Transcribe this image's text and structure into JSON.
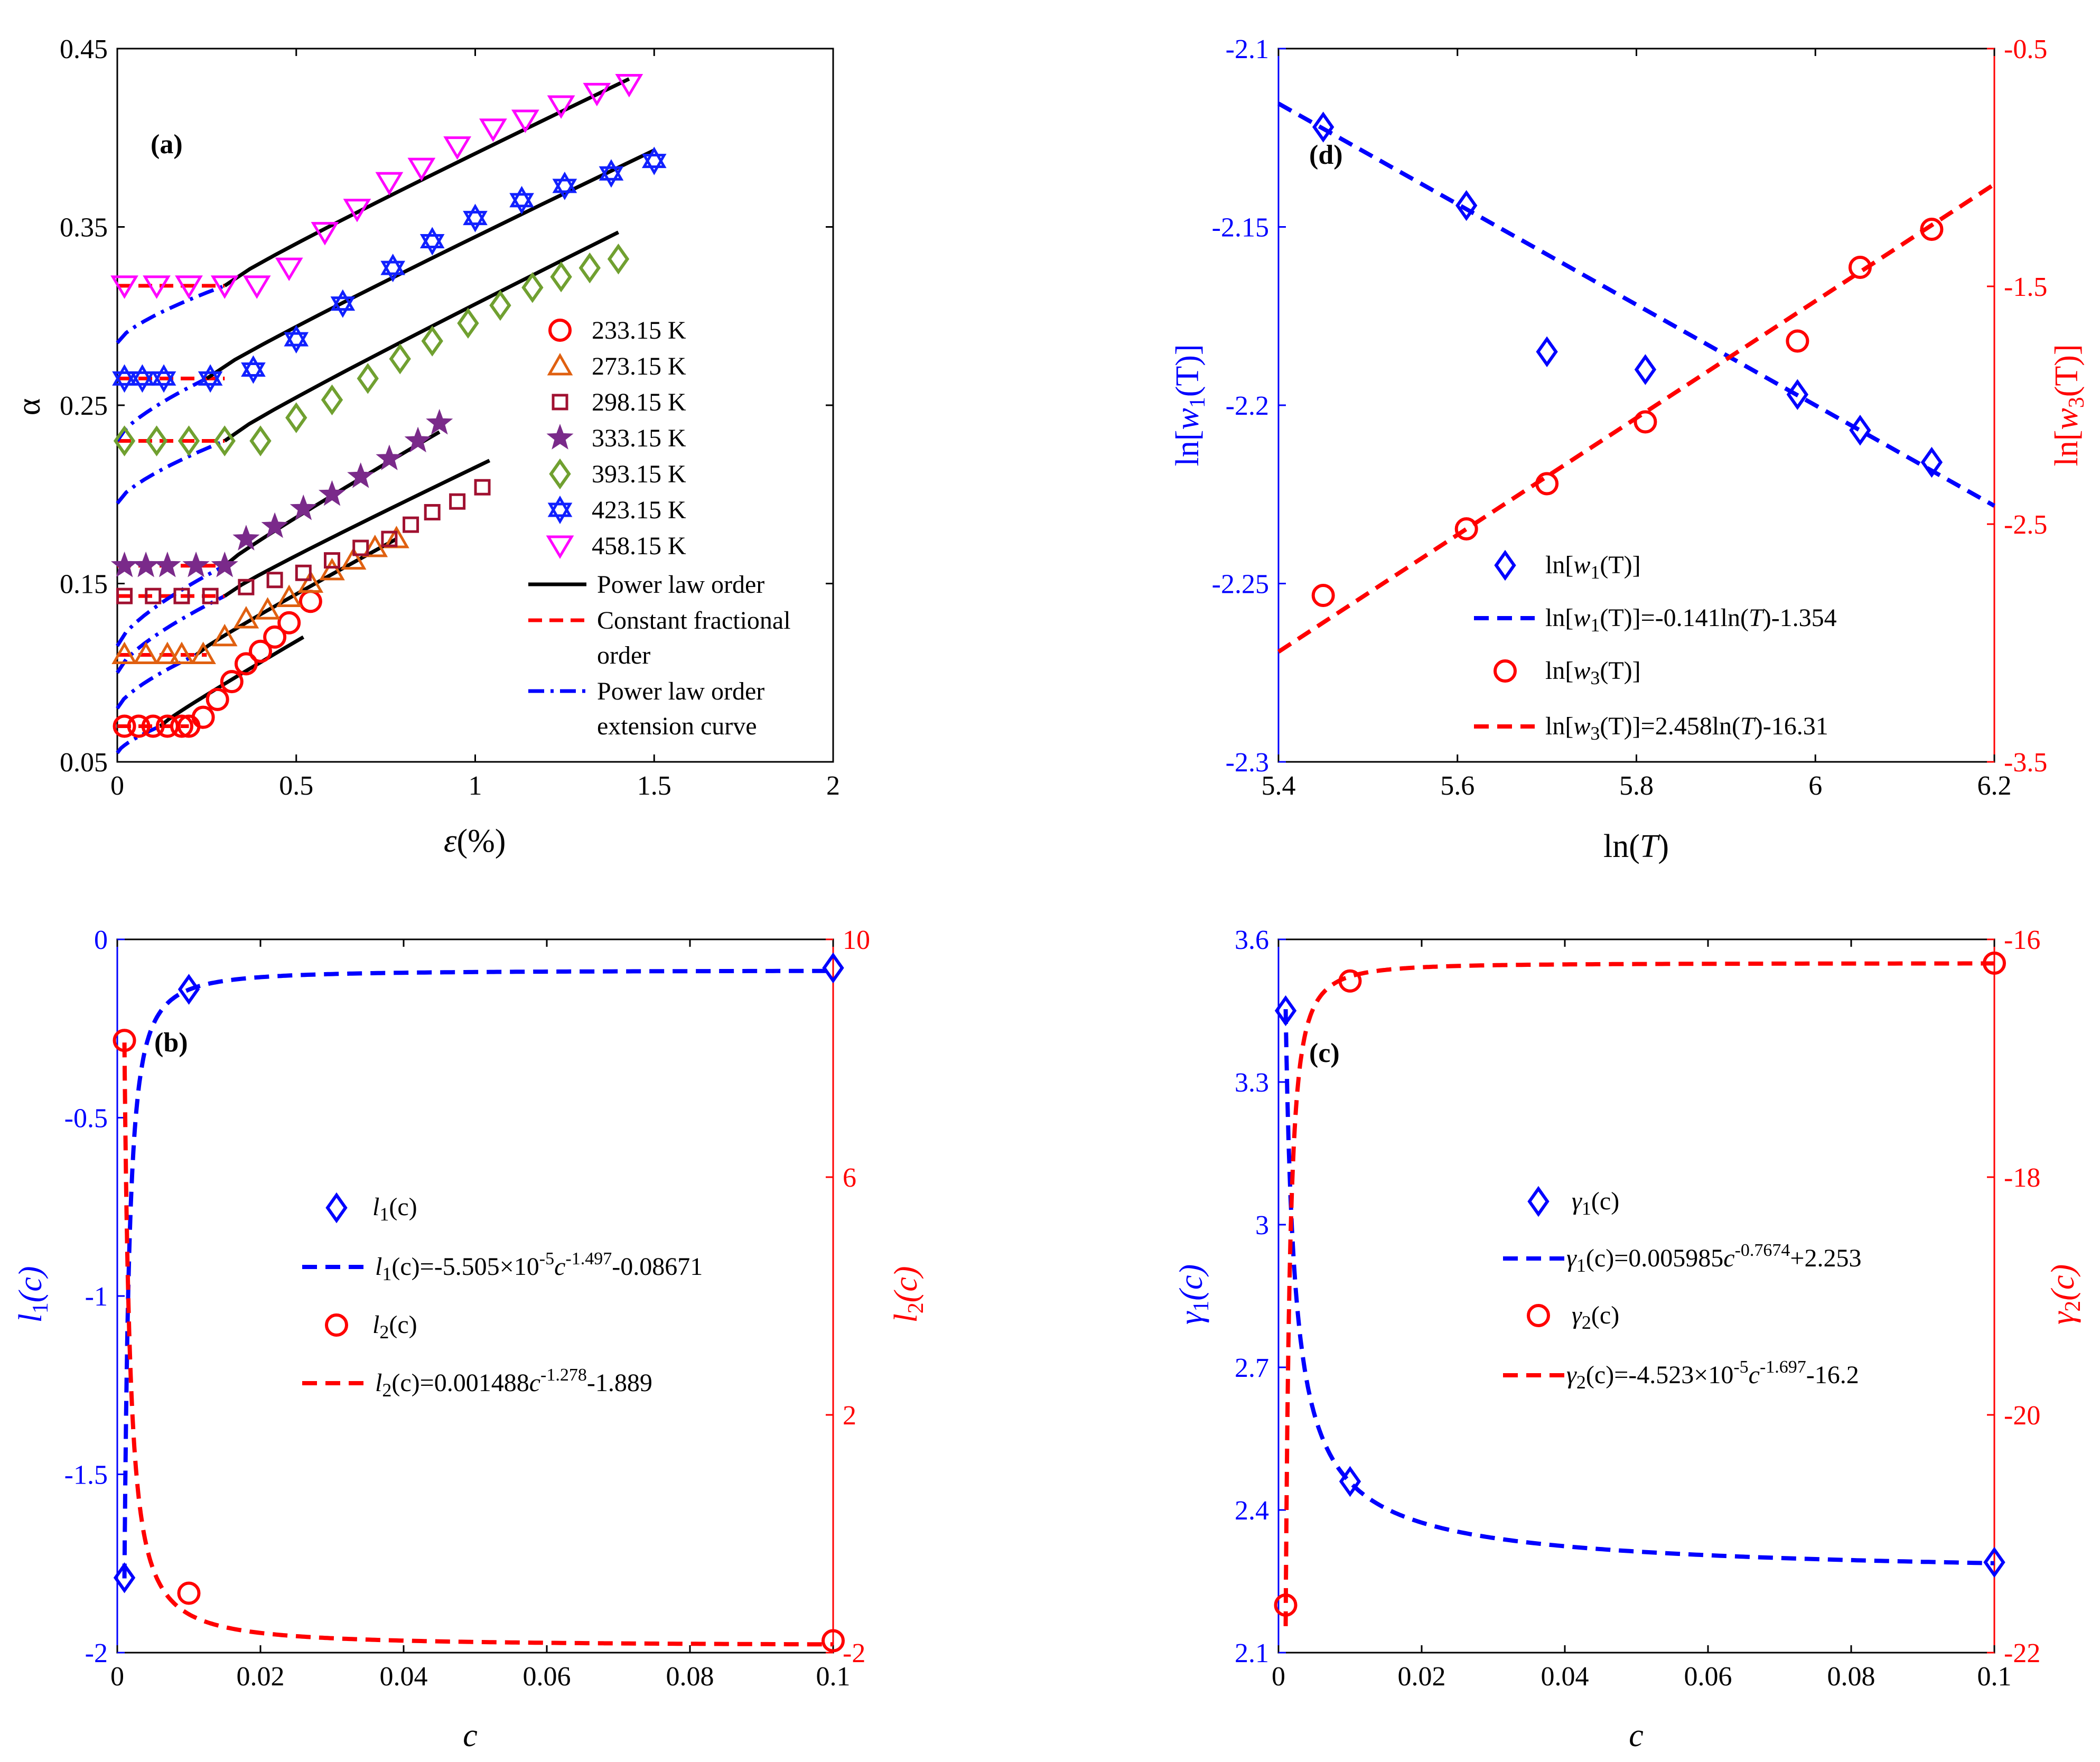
{
  "colors": {
    "blue": "#0000ff",
    "red": "#ff0000",
    "black": "#000000",
    "orange": "#e06010",
    "maroon": "#a01030",
    "purple": "#7a2a8a",
    "green": "#70a030",
    "magenta": "#ff00ff",
    "blueMarker": "#1020ff"
  },
  "chart_data": [
    {
      "id": "a",
      "type": "scatter",
      "panel_label": "(a)",
      "xlabel_sym": "ε",
      "xlabel_unit": "(%)",
      "ylabel": "α",
      "xlim": [
        0,
        2
      ],
      "ylim": [
        0.05,
        0.45
      ],
      "xticks": [
        {
          "v": 0,
          "t": "0"
        },
        {
          "v": 0.5,
          "t": "0.5"
        },
        {
          "v": 1,
          "t": "1"
        },
        {
          "v": 1.5,
          "t": "1.5"
        },
        {
          "v": 2,
          "t": "2"
        }
      ],
      "yticks": [
        {
          "v": 0.05,
          "t": "0.05"
        },
        {
          "v": 0.15,
          "t": "0.15"
        },
        {
          "v": 0.25,
          "t": "0.25"
        },
        {
          "v": 0.35,
          "t": "0.35"
        },
        {
          "v": 0.45,
          "t": "0.45"
        }
      ],
      "series": [
        {
          "name": "233.15 K",
          "marker": "circle",
          "color": "#ff0000",
          "x": [
            0.02,
            0.06,
            0.1,
            0.14,
            0.18,
            0.2,
            0.24,
            0.28,
            0.32,
            0.36,
            0.4,
            0.44,
            0.48,
            0.54
          ],
          "y": [
            0.07,
            0.07,
            0.07,
            0.07,
            0.07,
            0.07,
            0.075,
            0.085,
            0.095,
            0.105,
            0.112,
            0.12,
            0.128,
            0.14
          ],
          "const_y": 0.07,
          "const_x": [
            0,
            0.2
          ],
          "power": [
            [
              0.12,
              0.07
            ],
            [
              0.52,
              0.12
            ]
          ],
          "ext": [
            [
              0,
              0.055
            ],
            [
              0.12,
              0.07
            ]
          ]
        },
        {
          "name": "273.15 K",
          "marker": "triangle-up",
          "color": "#e06010",
          "x": [
            0.02,
            0.08,
            0.14,
            0.18,
            0.24,
            0.3,
            0.36,
            0.42,
            0.48,
            0.54,
            0.6,
            0.66,
            0.72,
            0.78
          ],
          "y": [
            0.11,
            0.11,
            0.11,
            0.11,
            0.11,
            0.12,
            0.13,
            0.135,
            0.142,
            0.15,
            0.157,
            0.163,
            0.17,
            0.175
          ],
          "const_y": 0.11,
          "const_x": [
            0,
            0.25
          ],
          "power": [
            [
              0.22,
              0.11
            ],
            [
              0.78,
              0.175
            ]
          ],
          "ext": [
            [
              0,
              0.08
            ],
            [
              0.22,
              0.11
            ]
          ]
        },
        {
          "name": "298.15 K",
          "marker": "square",
          "color": "#a01030",
          "x": [
            0.02,
            0.1,
            0.18,
            0.26,
            0.36,
            0.44,
            0.52,
            0.6,
            0.68,
            0.76,
            0.82,
            0.88,
            0.95,
            1.02
          ],
          "y": [
            0.143,
            0.143,
            0.143,
            0.143,
            0.148,
            0.152,
            0.156,
            0.163,
            0.17,
            0.175,
            0.183,
            0.19,
            0.196,
            0.204
          ],
          "const_y": 0.143,
          "const_x": [
            0,
            0.3
          ],
          "power": [
            [
              0.3,
              0.143
            ],
            [
              1.04,
              0.219
            ]
          ],
          "ext": [
            [
              0,
              0.1
            ],
            [
              0.3,
              0.143
            ]
          ]
        },
        {
          "name": "333.15 K",
          "marker": "star5",
          "color": "#7a2a8a",
          "x": [
            0.02,
            0.08,
            0.14,
            0.22,
            0.3,
            0.36,
            0.44,
            0.52,
            0.6,
            0.68,
            0.76,
            0.84,
            0.9
          ],
          "y": [
            0.16,
            0.16,
            0.16,
            0.16,
            0.16,
            0.175,
            0.182,
            0.192,
            0.2,
            0.21,
            0.22,
            0.23,
            0.24
          ],
          "const_y": 0.16,
          "const_x": [
            0,
            0.3
          ],
          "power": [
            [
              0.3,
              0.16
            ],
            [
              0.9,
              0.235
            ]
          ],
          "ext": [
            [
              0,
              0.115
            ],
            [
              0.3,
              0.16
            ]
          ]
        },
        {
          "name": "393.15 K",
          "marker": "diamond",
          "color": "#70a030",
          "x": [
            0.02,
            0.11,
            0.2,
            0.3,
            0.4,
            0.5,
            0.6,
            0.7,
            0.79,
            0.88,
            0.98,
            1.07,
            1.16,
            1.24,
            1.32,
            1.4
          ],
          "y": [
            0.23,
            0.23,
            0.23,
            0.23,
            0.23,
            0.243,
            0.253,
            0.265,
            0.276,
            0.286,
            0.296,
            0.306,
            0.316,
            0.322,
            0.327,
            0.332
          ],
          "const_y": 0.23,
          "const_x": [
            0,
            0.3
          ],
          "power": [
            [
              0.3,
              0.23
            ],
            [
              1.4,
              0.347
            ]
          ],
          "ext": [
            [
              0,
              0.195
            ],
            [
              0.3,
              0.23
            ]
          ]
        },
        {
          "name": "423.15 K",
          "marker": "hexagram",
          "color": "#1020ff",
          "x": [
            0.02,
            0.07,
            0.13,
            0.26,
            0.38,
            0.5,
            0.63,
            0.77,
            0.88,
            1.0,
            1.13,
            1.25,
            1.38,
            1.5
          ],
          "y": [
            0.265,
            0.265,
            0.265,
            0.265,
            0.27,
            0.287,
            0.307,
            0.327,
            0.342,
            0.355,
            0.365,
            0.373,
            0.38,
            0.387
          ],
          "const_y": 0.265,
          "const_x": [
            0,
            0.3
          ],
          "power": [
            [
              0.25,
              0.265
            ],
            [
              1.5,
              0.393
            ]
          ],
          "ext": [
            [
              0,
              0.23
            ],
            [
              0.25,
              0.265
            ]
          ]
        },
        {
          "name": "458.15 K",
          "marker": "triangle-down",
          "color": "#ff00ff",
          "x": [
            0.02,
            0.11,
            0.2,
            0.3,
            0.39,
            0.48,
            0.58,
            0.67,
            0.76,
            0.85,
            0.95,
            1.05,
            1.14,
            1.24,
            1.34,
            1.43
          ],
          "y": [
            0.317,
            0.317,
            0.317,
            0.317,
            0.317,
            0.327,
            0.347,
            0.36,
            0.375,
            0.383,
            0.395,
            0.405,
            0.41,
            0.418,
            0.425,
            0.43
          ],
          "const_y": 0.317,
          "const_x": [
            0,
            0.3
          ],
          "power": [
            [
              0.3,
              0.317
            ],
            [
              1.43,
              0.433
            ]
          ],
          "ext": [
            [
              0,
              0.285
            ],
            [
              0.3,
              0.317
            ]
          ]
        }
      ],
      "legend_lines": [
        {
          "name": "Power law order",
          "style": "solid",
          "color": "#000000"
        },
        {
          "name": "Constant fractional",
          "name2": "order",
          "style": "dash",
          "color": "#ff0000"
        },
        {
          "name": "Power law order",
          "name2": "extension curve",
          "style": "dashdot",
          "color": "#0000ff"
        }
      ]
    },
    {
      "id": "b",
      "type": "scatter+line",
      "panel_label": "(b)",
      "xlabel": "c",
      "ylabel_left_sym": "l",
      "ylabel_left_sub": "1",
      "ylabel_right_sym": "l",
      "ylabel_right_sub": "2",
      "ylabel_arg": "(c)",
      "xlim": [
        0,
        0.1
      ],
      "ylim_left": [
        -2,
        0
      ],
      "ylim_right": [
        -2,
        10
      ],
      "xticks": [
        {
          "v": 0,
          "t": "0"
        },
        {
          "v": 0.02,
          "t": "0.02"
        },
        {
          "v": 0.04,
          "t": "0.04"
        },
        {
          "v": 0.06,
          "t": "0.06"
        },
        {
          "v": 0.08,
          "t": "0.08"
        },
        {
          "v": 0.1,
          "t": "0.1"
        }
      ],
      "yticks_left": [
        {
          "v": 0,
          "t": "0"
        },
        {
          "v": -0.5,
          "t": "-0.5"
        },
        {
          "v": -1,
          "t": "-1"
        },
        {
          "v": -1.5,
          "t": "-1.5"
        },
        {
          "v": -2,
          "t": "-2"
        }
      ],
      "yticks_right": [
        {
          "v": 10,
          "t": "10"
        },
        {
          "v": 6,
          "t": "6"
        },
        {
          "v": 2,
          "t": "2"
        },
        {
          "v": -2,
          "t": "-2"
        }
      ],
      "l1_points": {
        "x": [
          0.001,
          0.01,
          0.1
        ],
        "y": [
          -1.79,
          -0.14,
          -0.08
        ]
      },
      "l2_points": {
        "x": [
          0.001,
          0.01,
          0.1
        ],
        "y": [
          8.3,
          -1.0,
          -1.8
        ]
      },
      "fit_l1": {
        "a": -5.505e-05,
        "b": -1.497,
        "c": -0.08671
      },
      "fit_l2": {
        "a": 0.001488,
        "b": -1.278,
        "c": -1.889
      },
      "legend": {
        "e1": {
          "sym": "l",
          "sub": "1",
          "arg": "(c)"
        },
        "e2": {
          "pre": "l",
          "sub": "1",
          "mid": "(c)=-5.505×10",
          "sup": "-5",
          "c": "c",
          "sup2": "-1.497",
          "post": "-0.08671"
        },
        "e3": {
          "sym": "l",
          "sub": "2",
          "arg": "(c)"
        },
        "e4": {
          "pre": "l",
          "sub": "2",
          "mid": "(c)=0.001488",
          "c": "c",
          "sup2": "-1.278",
          "post": "-1.889"
        }
      }
    },
    {
      "id": "c",
      "type": "scatter+line",
      "panel_label": "(c)",
      "xlabel": "c",
      "ylabel_left_sym": "γ",
      "ylabel_left_sub": "1",
      "ylabel_right_sym": "γ",
      "ylabel_right_sub": "2",
      "ylabel_arg": "(c)",
      "xlim": [
        0,
        0.1
      ],
      "ylim_left": [
        2.1,
        3.6
      ],
      "ylim_right": [
        -22,
        -16
      ],
      "xticks": [
        {
          "v": 0,
          "t": "0"
        },
        {
          "v": 0.02,
          "t": "0.02"
        },
        {
          "v": 0.04,
          "t": "0.04"
        },
        {
          "v": 0.06,
          "t": "0.06"
        },
        {
          "v": 0.08,
          "t": "0.08"
        },
        {
          "v": 0.1,
          "t": "0.1"
        }
      ],
      "yticks_left": [
        {
          "v": 3.6,
          "t": "3.6"
        },
        {
          "v": 3.3,
          "t": "3.3"
        },
        {
          "v": 3,
          "t": "3"
        },
        {
          "v": 2.7,
          "t": "2.7"
        },
        {
          "v": 2.4,
          "t": "2.4"
        },
        {
          "v": 2.1,
          "t": "2.1"
        }
      ],
      "yticks_right": [
        {
          "v": -16,
          "t": "-16"
        },
        {
          "v": -18,
          "t": "-18"
        },
        {
          "v": -20,
          "t": "-20"
        },
        {
          "v": -22,
          "t": "-22"
        }
      ],
      "g1_points": {
        "x": [
          0.001,
          0.01,
          0.1
        ],
        "y": [
          3.45,
          2.46,
          2.29
        ]
      },
      "g2_points": {
        "x": [
          0.001,
          0.01,
          0.1
        ],
        "y": [
          -21.6,
          -16.35,
          -16.2
        ]
      },
      "fit_g1": {
        "a": 0.005985,
        "b": -0.7674,
        "c": 2.253
      },
      "fit_g2": {
        "a": -4.523e-05,
        "b": -1.697,
        "c": -16.2
      },
      "legend": {
        "e1": {
          "sym": "γ",
          "sub": "1",
          "arg": "(c)"
        },
        "e2": {
          "pre": "γ",
          "sub": "1",
          "mid": "(c)=0.005985",
          "c": "c",
          "sup2": "-0.7674",
          "post": "+2.253"
        },
        "e3": {
          "sym": "γ",
          "sub": "2",
          "arg": "(c)"
        },
        "e4": {
          "pre": "γ",
          "sub": "2",
          "mid": "(c)=-4.523×10",
          "sup": "-5",
          "c": "c",
          "sup2": "-1.697",
          "post": "-16.2"
        }
      }
    },
    {
      "id": "d",
      "type": "scatter+line",
      "panel_label": "(d)",
      "xlabel_pre": "ln(",
      "xlabel_sym": "T",
      "xlabel_post": ")",
      "ylabel_left": {
        "pre": "ln[",
        "sym": "w",
        "sub": "1",
        "post": "(T)]"
      },
      "ylabel_right": {
        "pre": "ln[",
        "sym": "w",
        "sub": "3",
        "post": "(T)]"
      },
      "xlim": [
        5.4,
        6.2
      ],
      "ylim_left": [
        -2.3,
        -2.1
      ],
      "ylim_right": [
        -3.5,
        -0.5
      ],
      "xticks": [
        {
          "v": 5.4,
          "t": "5.4"
        },
        {
          "v": 5.6,
          "t": "5.6"
        },
        {
          "v": 5.8,
          "t": "5.8"
        },
        {
          "v": 6,
          "t": "6"
        },
        {
          "v": 6.2,
          "t": "6.2"
        }
      ],
      "yticks_left": [
        {
          "v": -2.1,
          "t": "-2.1"
        },
        {
          "v": -2.15,
          "t": "-2.15"
        },
        {
          "v": -2.2,
          "t": "-2.2"
        },
        {
          "v": -2.25,
          "t": "-2.25"
        },
        {
          "v": -2.3,
          "t": "-2.3"
        }
      ],
      "yticks_right": [
        {
          "v": -0.5,
          "t": "-0.5"
        },
        {
          "v": -1.5,
          "t": "-1.5"
        },
        {
          "v": -2.5,
          "t": "-2.5"
        },
        {
          "v": -3.5,
          "t": "-3.5"
        }
      ],
      "w1_points": {
        "x": [
          5.45,
          5.61,
          5.7,
          5.81,
          5.98,
          6.05,
          6.13
        ],
        "y": [
          -2.122,
          -2.144,
          -2.185,
          -2.19,
          -2.197,
          -2.207,
          -2.216
        ]
      },
      "w3_points": {
        "x": [
          5.45,
          5.61,
          5.7,
          5.81,
          5.98,
          6.05,
          6.13
        ],
        "y": [
          -2.8,
          -2.52,
          -2.33,
          -2.07,
          -1.73,
          -1.42,
          -1.26
        ]
      },
      "fit_w1": {
        "slope": -0.141,
        "intercept": -1.354
      },
      "fit_w3": {
        "slope": 2.458,
        "intercept": -16.31
      },
      "legend": {
        "e1": {
          "pre": "ln[",
          "sym": "w",
          "sub": "1",
          "post": "(T)]"
        },
        "e2": {
          "pre": "ln[",
          "sym": "w",
          "sub": "1",
          "post": "(T)]=-0.141ln(",
          "t": "T",
          "end": ")-1.354"
        },
        "e3": {
          "pre": "ln[",
          "sym": "w",
          "sub": "3",
          "post": "(T)]"
        },
        "e4": {
          "pre": "ln[",
          "sym": "w",
          "sub": "3",
          "post": "(T)]=2.458ln(",
          "t": "T",
          "end": ")-16.31"
        }
      }
    }
  ]
}
